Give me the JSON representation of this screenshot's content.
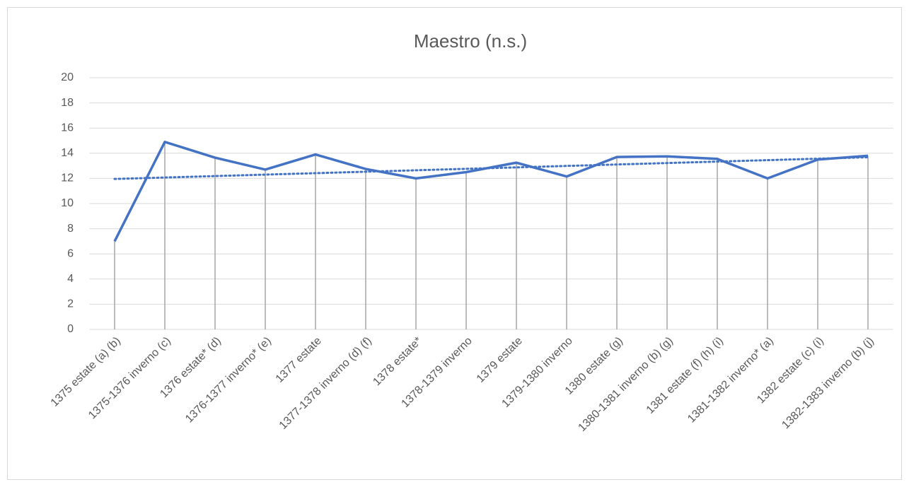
{
  "chart_data": {
    "type": "line",
    "title": "Maestro (n.s.)",
    "categories": [
      "1375 estate (a) (b)",
      "1375-1376 inverno (c)",
      "1376 estate* (d)",
      "1376-1377 inverno* (e)",
      "1377 estate",
      "1377-1378 inverno (d) (f)",
      "1378 estate*",
      "1378-1379 inverno",
      "1379 estate",
      "1379-1380 inverno",
      "1380 estate (g)",
      "1380-1381 inverno (b) (g)",
      "1381 estate (f) (h) (i)",
      "1381-1382 inverno* (a)",
      "1382 estate (c) (i)",
      "1382-1383 inverno (b) (j)"
    ],
    "values": [
      7.0,
      14.9,
      13.65,
      12.7,
      13.9,
      12.75,
      12.0,
      12.5,
      13.25,
      12.15,
      13.7,
      13.75,
      13.55,
      12.0,
      13.5,
      13.8
    ],
    "color": "#4472c4",
    "ylim": [
      0,
      20
    ],
    "yticks": [
      0,
      2,
      4,
      6,
      8,
      10,
      12,
      14,
      16,
      18,
      20
    ],
    "grid": true,
    "drop_lines": true,
    "trendline": "linear"
  }
}
